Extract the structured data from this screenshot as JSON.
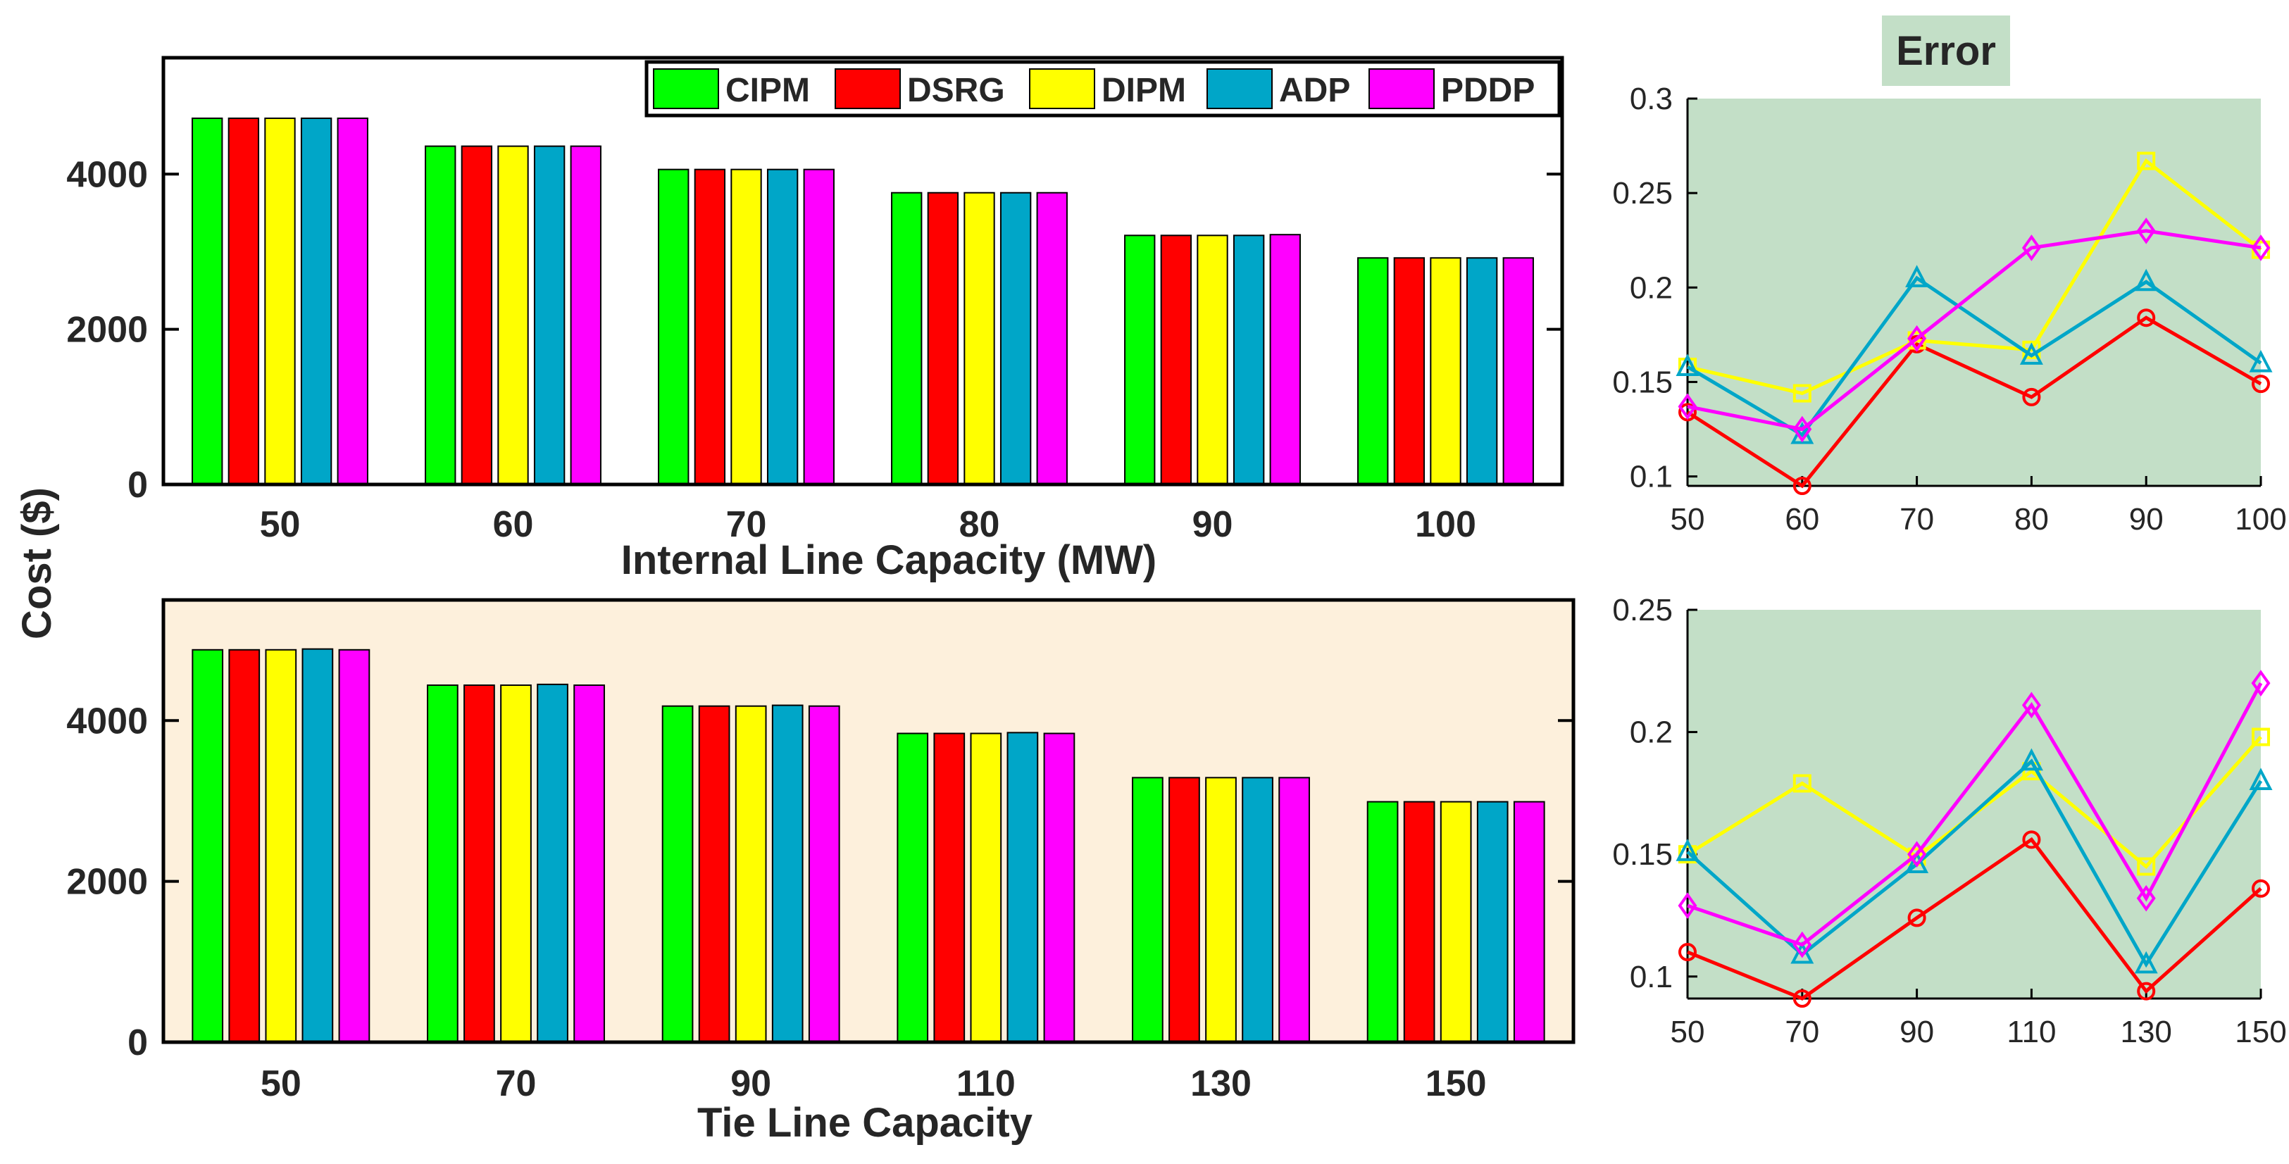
{
  "figure": {
    "ylabel": "Cost ($)",
    "error_title": "Error"
  },
  "colors": {
    "CIPM": "#00ff00",
    "DSRG": "#ff0000",
    "DIPM": "#ffff00",
    "ADP": "#00a6c8",
    "PDDP": "#ff00ff",
    "top_bg": "#ffffff",
    "bottom_bg": "#fdf0dc",
    "error_bg": "#c3dfc7"
  },
  "legend": [
    "CIPM",
    "DSRG",
    "DIPM",
    "ADP",
    "PDDP"
  ],
  "chart_data": [
    {
      "id": "bar_top",
      "type": "bar",
      "xlabel": "Internal Line Capacity (MW)",
      "ylabel": "Cost ($)",
      "categories": [
        "50",
        "60",
        "70",
        "80",
        "90",
        "100"
      ],
      "ylim": [
        0,
        5500
      ],
      "yticks": [
        0,
        2000,
        4000
      ],
      "series": [
        {
          "name": "CIPM",
          "values": [
            4720,
            4360,
            4060,
            3760,
            3210,
            2920
          ]
        },
        {
          "name": "DSRG",
          "values": [
            4720,
            4360,
            4060,
            3760,
            3210,
            2920
          ]
        },
        {
          "name": "DIPM",
          "values": [
            4720,
            4360,
            4060,
            3760,
            3210,
            2920
          ]
        },
        {
          "name": "ADP",
          "values": [
            4720,
            4360,
            4060,
            3760,
            3210,
            2920
          ]
        },
        {
          "name": "PDDP",
          "values": [
            4720,
            4360,
            4060,
            3760,
            3220,
            2920
          ]
        }
      ]
    },
    {
      "id": "bar_bottom",
      "type": "bar",
      "xlabel": "Tie Line Capacity",
      "ylabel": "Cost ($)",
      "categories": [
        "50",
        "70",
        "90",
        "110",
        "130",
        "150"
      ],
      "ylim": [
        0,
        5500
      ],
      "yticks": [
        0,
        2000,
        4000
      ],
      "series": [
        {
          "name": "CIPM",
          "values": [
            4880,
            4440,
            4180,
            3840,
            3290,
            2990
          ]
        },
        {
          "name": "DSRG",
          "values": [
            4880,
            4440,
            4180,
            3840,
            3290,
            2990
          ]
        },
        {
          "name": "DIPM",
          "values": [
            4880,
            4440,
            4180,
            3840,
            3290,
            2990
          ]
        },
        {
          "name": "ADP",
          "values": [
            4890,
            4450,
            4190,
            3850,
            3290,
            2990
          ]
        },
        {
          "name": "PDDP",
          "values": [
            4880,
            4440,
            4180,
            3840,
            3290,
            2990
          ]
        }
      ]
    },
    {
      "id": "err_top",
      "type": "line",
      "title": "Error",
      "x": [
        50,
        60,
        70,
        80,
        90,
        100
      ],
      "xticks": [
        "50",
        "60",
        "70",
        "80",
        "90",
        "100"
      ],
      "ylim": [
        0.095,
        0.3
      ],
      "yticks": [
        "0.1",
        "0.15",
        "0.2",
        "0.25",
        "0.3"
      ],
      "series": [
        {
          "name": "DSRG",
          "marker": "circle",
          "values": [
            0.134,
            0.095,
            0.17,
            0.142,
            0.184,
            0.149
          ]
        },
        {
          "name": "DIPM",
          "marker": "square",
          "values": [
            0.158,
            0.144,
            0.172,
            0.167,
            0.267,
            0.22
          ]
        },
        {
          "name": "ADP",
          "marker": "triangle",
          "values": [
            0.158,
            0.122,
            0.205,
            0.164,
            0.203,
            0.16
          ]
        },
        {
          "name": "PDDP",
          "marker": "diamond",
          "values": [
            0.137,
            0.125,
            0.173,
            0.221,
            0.23,
            0.221
          ]
        }
      ]
    },
    {
      "id": "err_bottom",
      "type": "line",
      "x": [
        50,
        70,
        90,
        110,
        130,
        150
      ],
      "xticks": [
        "50",
        "70",
        "90",
        "110",
        "130",
        "150"
      ],
      "ylim": [
        0.091,
        0.25
      ],
      "yticks": [
        "0.1",
        "0.15",
        "0.2",
        "0.25"
      ],
      "series": [
        {
          "name": "DSRG",
          "marker": "circle",
          "values": [
            0.11,
            0.091,
            0.124,
            0.156,
            0.094,
            0.136
          ]
        },
        {
          "name": "DIPM",
          "marker": "square",
          "values": [
            0.15,
            0.179,
            0.149,
            0.184,
            0.145,
            0.198
          ]
        },
        {
          "name": "ADP",
          "marker": "triangle",
          "values": [
            0.151,
            0.109,
            0.146,
            0.188,
            0.105,
            0.18
          ]
        },
        {
          "name": "PDDP",
          "marker": "diamond",
          "values": [
            0.129,
            0.113,
            0.15,
            0.211,
            0.132,
            0.22
          ]
        }
      ]
    }
  ]
}
